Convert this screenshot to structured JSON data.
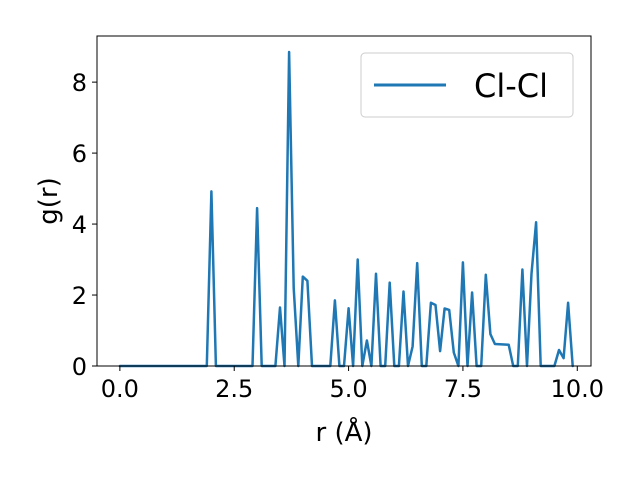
{
  "chart_data": {
    "type": "line",
    "xlabel": "r (Å)",
    "ylabel": "g(r)",
    "xlim": [
      -0.5,
      10.3
    ],
    "ylim": [
      0,
      9.3
    ],
    "xticks": [
      0.0,
      2.5,
      5.0,
      7.5,
      10.0
    ],
    "xtick_labels": [
      "0.0",
      "2.5",
      "5.0",
      "7.5",
      "10.0"
    ],
    "yticks": [
      0,
      2,
      4,
      6,
      8
    ],
    "ytick_labels": [
      "0",
      "2",
      "4",
      "6",
      "8"
    ],
    "grid": false,
    "legend": {
      "position": "top-right",
      "entries": [
        "Cl-Cl"
      ]
    },
    "series": [
      {
        "name": "Cl-Cl",
        "color": "#1f77b4",
        "x": [
          0.0,
          1.9,
          2.0,
          2.1,
          2.9,
          3.0,
          3.1,
          3.4,
          3.5,
          3.6,
          3.7,
          3.8,
          3.9,
          4.0,
          4.1,
          4.2,
          4.6,
          4.7,
          4.8,
          4.9,
          5.0,
          5.1,
          5.2,
          5.3,
          5.4,
          5.5,
          5.6,
          5.7,
          5.8,
          5.9,
          6.0,
          6.1,
          6.2,
          6.3,
          6.4,
          6.5,
          6.6,
          6.7,
          6.8,
          6.9,
          7.0,
          7.1,
          7.2,
          7.3,
          7.4,
          7.5,
          7.6,
          7.7,
          7.8,
          7.9,
          8.0,
          8.1,
          8.2,
          8.5,
          8.6,
          8.7,
          8.8,
          8.9,
          9.0,
          9.1,
          9.2,
          9.5,
          9.6,
          9.7,
          9.8,
          9.9
        ],
        "y": [
          0.0,
          0.0,
          4.92,
          0.0,
          0.0,
          4.45,
          0.0,
          0.0,
          1.65,
          0.0,
          8.85,
          2.2,
          0.0,
          2.52,
          2.4,
          0.0,
          0.0,
          1.85,
          0.0,
          0.0,
          1.63,
          0.0,
          3.0,
          0.0,
          0.72,
          0.0,
          2.6,
          0.0,
          0.0,
          2.35,
          0.0,
          0.0,
          2.1,
          0.0,
          0.55,
          2.9,
          0.0,
          0.0,
          1.78,
          1.72,
          0.42,
          1.62,
          1.58,
          0.38,
          0.0,
          2.92,
          0.0,
          2.07,
          0.0,
          0.0,
          2.57,
          0.9,
          0.62,
          0.6,
          0.0,
          0.0,
          2.72,
          0.0,
          2.6,
          4.05,
          0.0,
          0.0,
          0.45,
          0.22,
          1.78,
          0.0
        ]
      }
    ]
  }
}
